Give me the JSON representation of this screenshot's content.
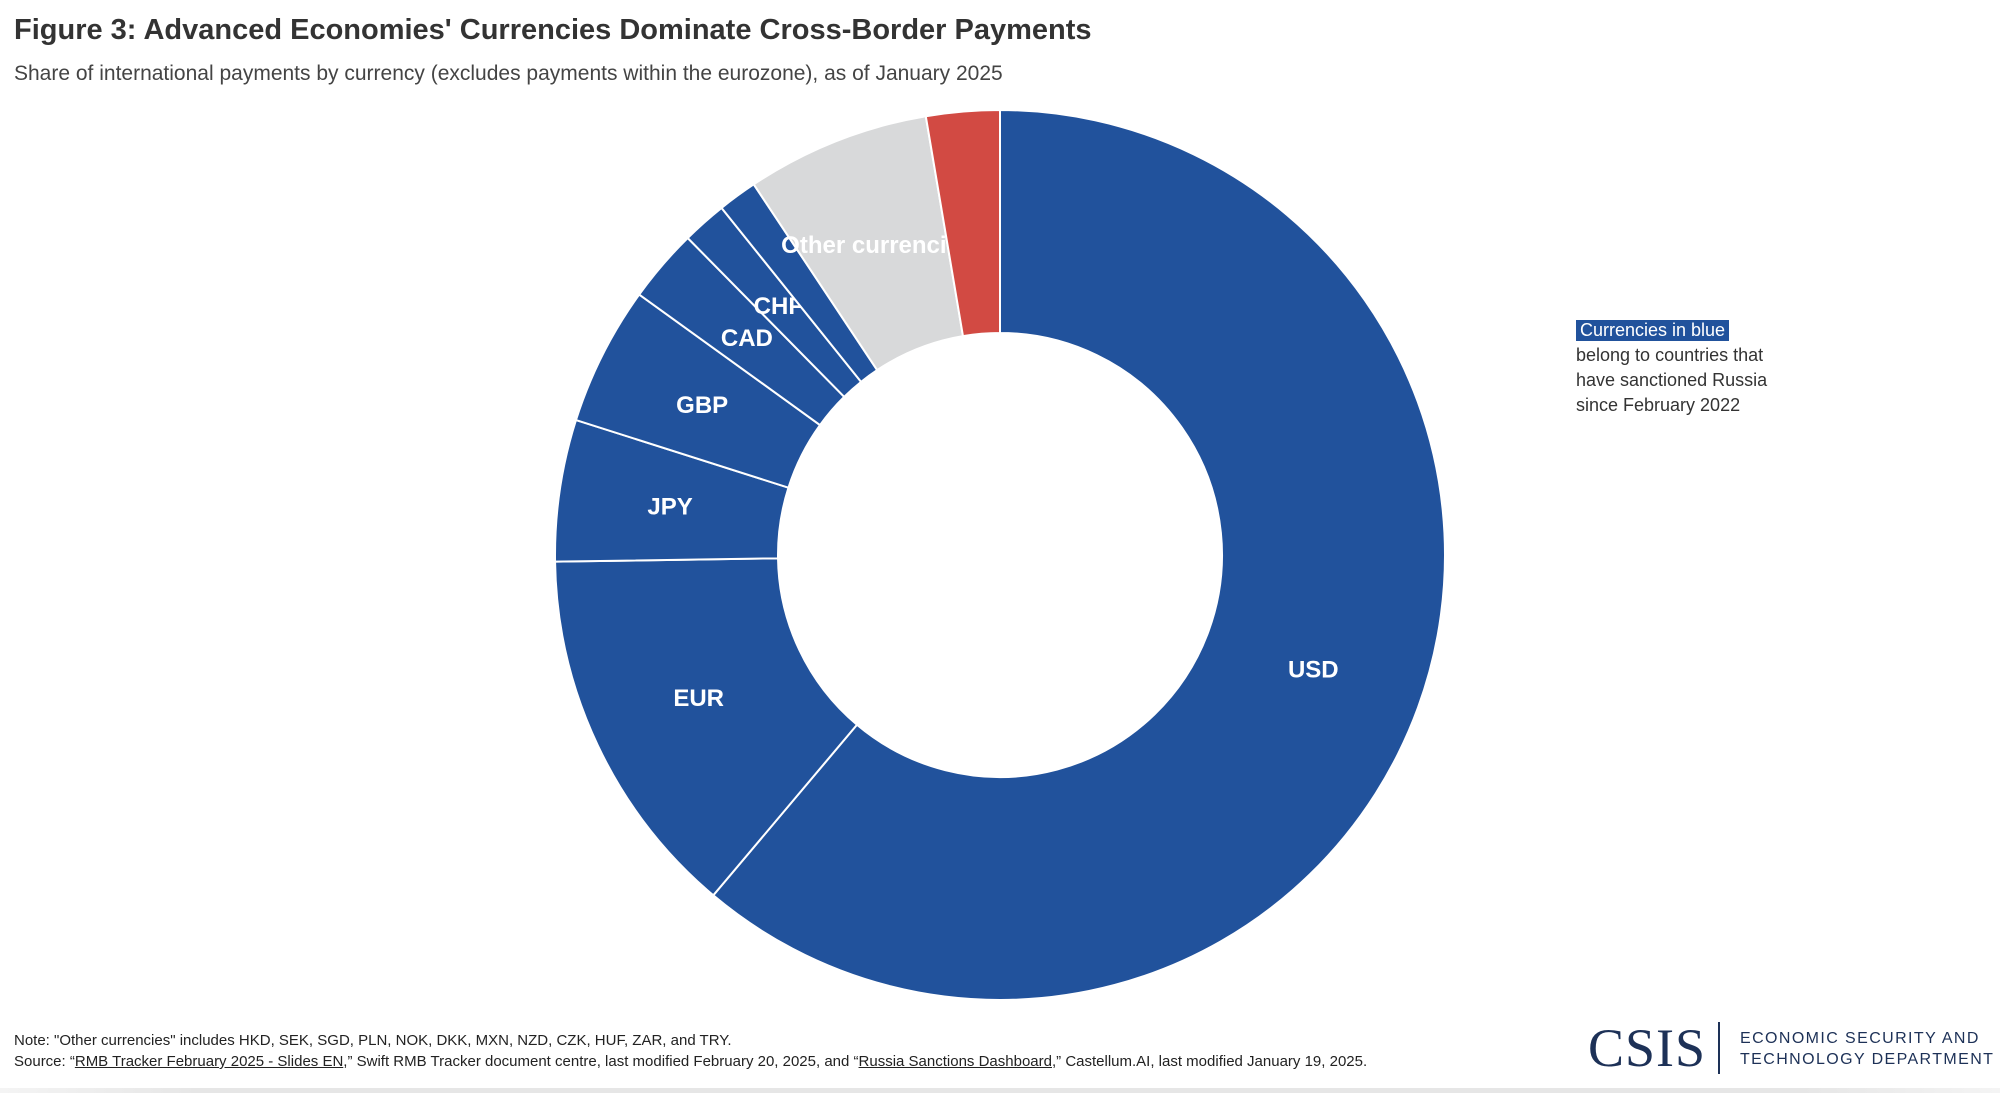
{
  "title": "Figure 3: Advanced Economies' Currencies Dominate Cross-Border Payments",
  "subtitle": "Share of international payments by currency (excludes payments within the eurozone), as of January 2025",
  "colors": {
    "sanctioning": "#21529c",
    "other": "#d8d9da",
    "rmb": "#d24a43",
    "label": "#ffffff"
  },
  "chart_data": {
    "type": "pie",
    "donut": true,
    "start": "12 o'clock, clockwise",
    "slices": [
      {
        "label": "USD",
        "value": 64.2,
        "color": "#21529c"
      },
      {
        "label": "EUR",
        "value": 14.3,
        "color": "#21529c"
      },
      {
        "label": "JPY",
        "value": 5.4,
        "color": "#21529c"
      },
      {
        "label": "GBP",
        "value": 5.3,
        "color": "#21529c"
      },
      {
        "label": "CAD",
        "value": 2.8,
        "color": "#21529c"
      },
      {
        "label": "CHF",
        "value": 1.7,
        "color": "#21529c"
      },
      {
        "label": "",
        "value": 1.5,
        "color": "#21529c"
      },
      {
        "label": "Other currencies",
        "value": 7.0,
        "color": "#d8d9da"
      },
      {
        "label": "",
        "value": 2.8,
        "color": "#d24a43"
      }
    ]
  },
  "legend_note": {
    "highlight": "Currencies in blue",
    "rest": "belong to countries that have sanctioned Russia since February 2022"
  },
  "footer": {
    "note": "Note: \"Other currencies\" includes HKD, SEK, SGD, PLN, NOK, DKK, MXN, NZD, CZK, HUF, ZAR, and TRY.",
    "source_prefix": "Source: “",
    "source_link1": "RMB Tracker February 2025 - Slides EN",
    "source_mid": ",” Swift RMB Tracker document centre, last modified February 20, 2025, and “",
    "source_link2": "Russia Sanctions Dashboard",
    "source_suffix": ",” Castellum.AI, last modified January 19, 2025."
  },
  "logo": {
    "mark": "CSIS",
    "department": "Economic Security and Technology Department"
  }
}
